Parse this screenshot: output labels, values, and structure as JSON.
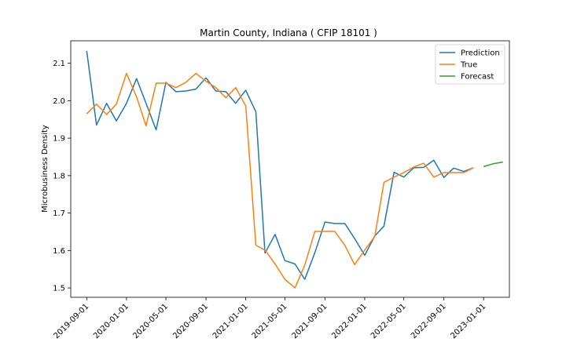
{
  "chart_data": {
    "type": "line",
    "title": "Martin County, Indiana ( CFIP 18101 )",
    "xlabel": "",
    "ylabel": "Microbusiness Density",
    "ylim": [
      1.475,
      2.16
    ],
    "xlim": [
      "2019-07-14",
      "2023-03-21"
    ],
    "x_ticks": [
      "2019-09-01",
      "2020-01-01",
      "2020-05-01",
      "2020-09-01",
      "2021-01-01",
      "2021-05-01",
      "2021-09-01",
      "2022-01-01",
      "2022-05-01",
      "2022-09-01",
      "2023-01-01"
    ],
    "y_ticks": [
      1.5,
      1.6,
      1.7,
      1.8,
      1.9,
      2.0,
      2.1
    ],
    "y_tick_labels": [
      "1.5",
      "1.6",
      "1.7",
      "1.8",
      "1.9",
      "2.0",
      "2.1"
    ],
    "grid": false,
    "legend": {
      "position": "top-right"
    },
    "series": [
      {
        "name": "Prediction",
        "color": "#1f77b4",
        "x": [
          "2019-09-01",
          "2019-10-01",
          "2019-11-01",
          "2019-12-01",
          "2020-01-01",
          "2020-02-01",
          "2020-03-01",
          "2020-04-01",
          "2020-05-01",
          "2020-06-01",
          "2020-07-01",
          "2020-08-01",
          "2020-09-01",
          "2020-10-01",
          "2020-11-01",
          "2020-12-01",
          "2021-01-01",
          "2021-02-01",
          "2021-03-01",
          "2021-04-01",
          "2021-05-01",
          "2021-06-01",
          "2021-07-01",
          "2021-08-01",
          "2021-09-01",
          "2021-10-01",
          "2021-11-01",
          "2021-12-01",
          "2022-01-01",
          "2022-02-01",
          "2022-03-01",
          "2022-04-01",
          "2022-05-01",
          "2022-06-01",
          "2022-07-01",
          "2022-08-01",
          "2022-09-01",
          "2022-10-01",
          "2022-11-01",
          "2022-12-01"
        ],
        "values": [
          2.133,
          1.935,
          1.993,
          1.946,
          1.993,
          2.059,
          1.993,
          1.922,
          2.049,
          2.024,
          2.026,
          2.031,
          2.061,
          2.026,
          2.024,
          1.993,
          2.028,
          1.97,
          1.593,
          1.643,
          1.573,
          1.564,
          1.523,
          1.594,
          1.676,
          1.672,
          1.672,
          1.632,
          1.587,
          1.639,
          1.665,
          1.809,
          1.796,
          1.821,
          1.822,
          1.841,
          1.795,
          1.82,
          1.811,
          1.821
        ]
      },
      {
        "name": "True",
        "color": "#ff7f0e",
        "x": [
          "2019-09-01",
          "2019-10-01",
          "2019-11-01",
          "2019-12-01",
          "2020-01-01",
          "2020-02-01",
          "2020-03-01",
          "2020-04-01",
          "2020-05-01",
          "2020-06-01",
          "2020-07-01",
          "2020-08-01",
          "2020-09-01",
          "2020-10-01",
          "2020-11-01",
          "2020-12-01",
          "2021-01-01",
          "2021-02-01",
          "2021-03-01",
          "2021-04-01",
          "2021-05-01",
          "2021-06-01",
          "2021-07-01",
          "2021-08-01",
          "2021-09-01",
          "2021-10-01",
          "2021-11-01",
          "2021-12-01",
          "2022-01-01",
          "2022-02-01",
          "2022-03-01",
          "2022-04-01",
          "2022-05-01",
          "2022-06-01",
          "2022-07-01",
          "2022-08-01",
          "2022-09-01",
          "2022-10-01",
          "2022-11-01",
          "2022-12-01"
        ],
        "values": [
          1.965,
          1.991,
          1.963,
          1.991,
          2.073,
          2.01,
          1.933,
          2.047,
          2.047,
          2.035,
          2.049,
          2.073,
          2.052,
          2.035,
          2.008,
          2.035,
          1.986,
          1.614,
          1.601,
          1.564,
          1.523,
          1.5,
          1.561,
          1.651,
          1.651,
          1.651,
          1.614,
          1.562,
          1.601,
          1.638,
          1.782,
          1.796,
          1.808,
          1.823,
          1.833,
          1.796,
          1.808,
          1.808,
          1.808,
          1.821
        ]
      },
      {
        "name": "Forecast",
        "color": "#2ca02c",
        "x": [
          "2023-01-01",
          "2023-02-01",
          "2023-03-01"
        ],
        "values": [
          1.824,
          1.832,
          1.836
        ]
      }
    ]
  }
}
